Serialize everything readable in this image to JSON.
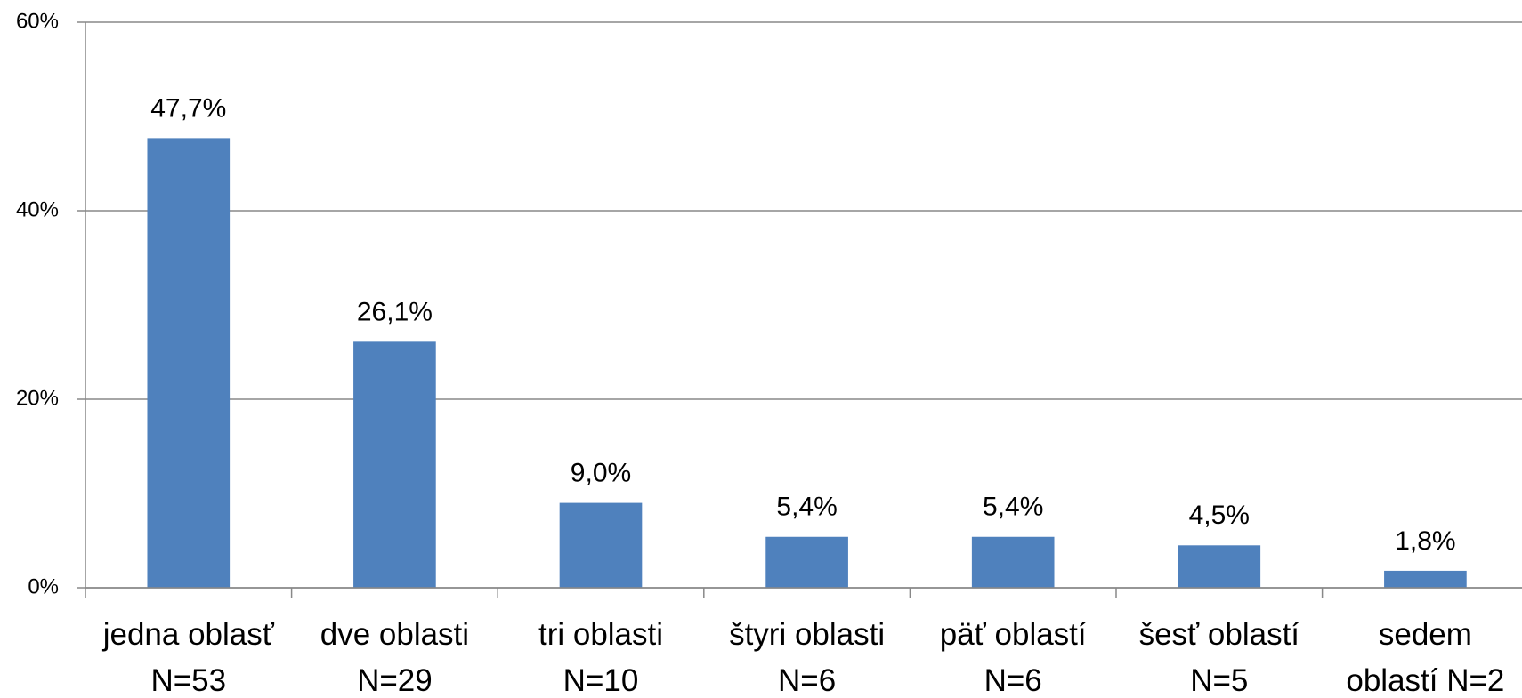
{
  "chart_data": {
    "type": "bar",
    "categories": [
      [
        "jedna oblasť",
        "N=53"
      ],
      [
        "dve oblasti",
        "N=29"
      ],
      [
        "tri oblasti",
        "N=10"
      ],
      [
        "štyri oblasti",
        "N=6"
      ],
      [
        "päť oblastí",
        "N=6"
      ],
      [
        "šesť oblastí",
        "N=5"
      ],
      [
        "sedem",
        "oblastí N=2"
      ]
    ],
    "values": [
      47.7,
      26.1,
      9.0,
      5.4,
      5.4,
      4.5,
      1.8
    ],
    "value_labels": [
      "47,7%",
      "26,1%",
      "9,0%",
      "5,4%",
      "5,4%",
      "4,5%",
      "1,8%"
    ],
    "color": "#4f81bd",
    "ylim": [
      0,
      60
    ],
    "yticks": [
      {
        "value": 0,
        "label": "0%"
      },
      {
        "value": 20,
        "label": "20%"
      },
      {
        "value": 40,
        "label": "40%"
      },
      {
        "value": 60,
        "label": "60%"
      }
    ],
    "grid": true
  }
}
